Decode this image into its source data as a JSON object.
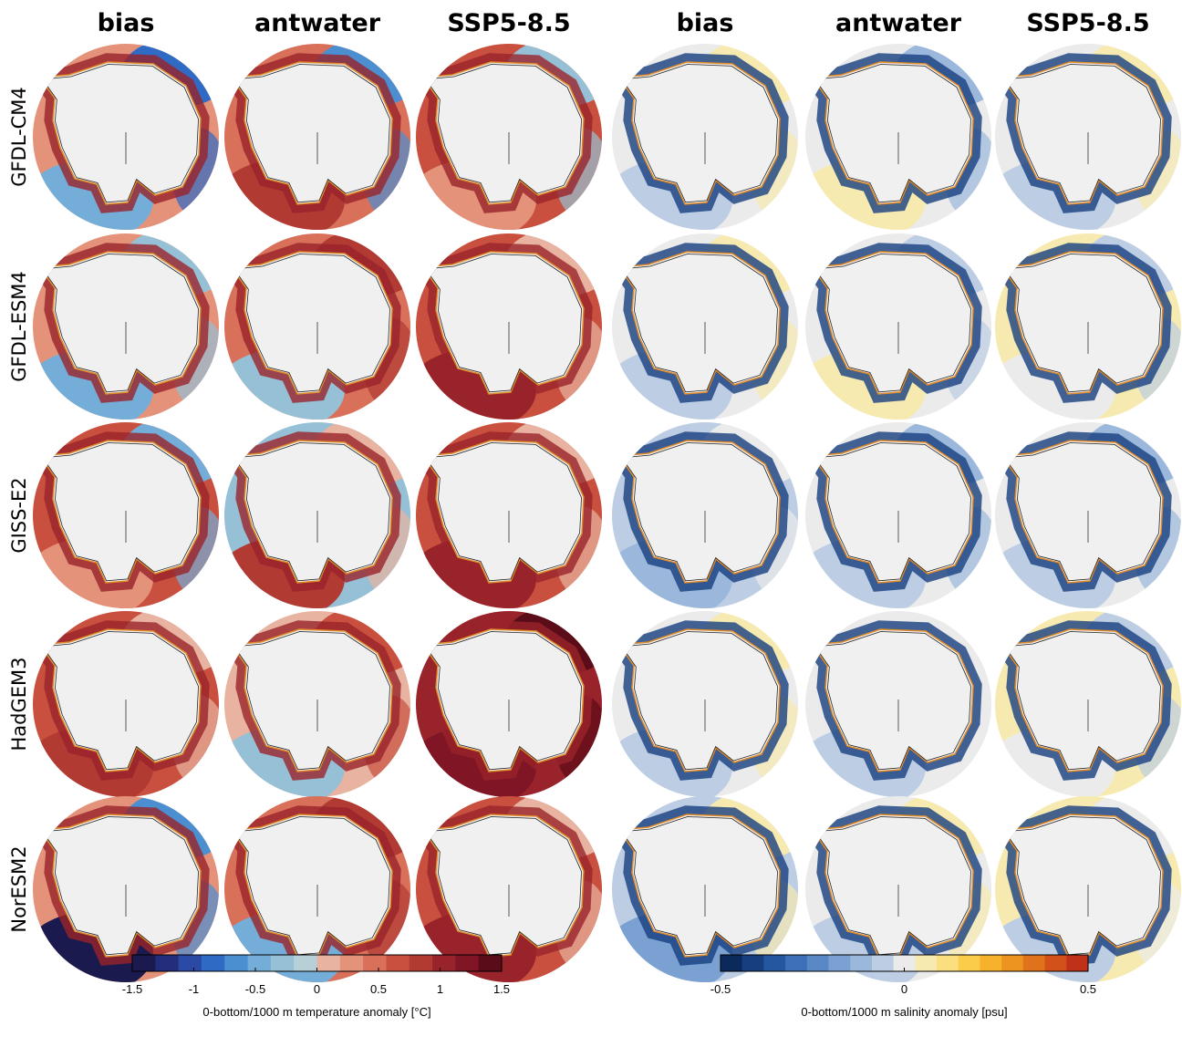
{
  "column_titles": [
    "bias",
    "antwater",
    "SSP5-8.5",
    "bias",
    "antwater",
    "SSP5-8.5"
  ],
  "row_labels": [
    "GFDL-CM4",
    "GFDL-ESM4",
    "GISS-E2",
    "HadGEM3",
    "NorESM2"
  ],
  "colorbars": [
    {
      "label": "0-bottom/1000 m temperature anomaly [°C]",
      "lim": [
        -1.5,
        1.5
      ],
      "ticks": [
        -1.5,
        -1,
        -0.5,
        0,
        0.5,
        1,
        1.5
      ],
      "colors": [
        "#1a1a4e",
        "#232d7a",
        "#2b4aa6",
        "#2f6ac4",
        "#4b8fd1",
        "#74aed8",
        "#96c0d6",
        "#b7d0d8",
        "#e8b3a0",
        "#e5927a",
        "#d9705a",
        "#c9503f",
        "#b13a33",
        "#99232b",
        "#7f1525",
        "#5a0c18"
      ]
    },
    {
      "label": "0-bottom/1000 m salinity anomaly [psu]",
      "lim": [
        -0.5,
        0.5
      ],
      "ticks": [
        -0.5,
        0,
        0.5
      ],
      "colors": [
        "#0b2a5b",
        "#173f7f",
        "#24579f",
        "#3d70b8",
        "#5a88c6",
        "#7aa1d2",
        "#9bb8dc",
        "#bccde4",
        "#ebebeb",
        "#f7eab0",
        "#fbde7e",
        "#fbcc4a",
        "#f5b22a",
        "#ec9320",
        "#e0721c",
        "#d2511a",
        "#c0311a"
      ]
    }
  ]
}
